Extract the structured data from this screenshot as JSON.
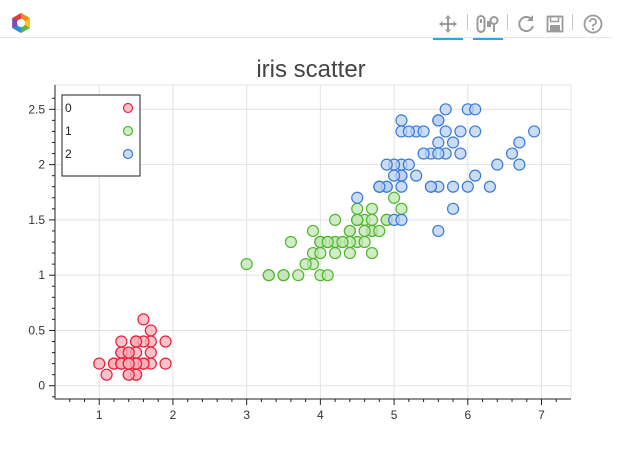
{
  "toolbar": {
    "logo_icon": "bokeh-logo-icon",
    "tools": [
      {
        "name": "pan-tool",
        "icon": "move-arrows-icon",
        "active": true
      },
      {
        "name": "wheel-zoom-tool",
        "icon": "wheel-zoom-icon",
        "active": true
      },
      {
        "name": "reset-tool",
        "icon": "reset-icon",
        "active": false
      },
      {
        "name": "save-tool",
        "icon": "save-disk-icon",
        "active": false
      },
      {
        "name": "help-tool",
        "icon": "help-question-icon",
        "active": false
      }
    ]
  },
  "chart_data": {
    "type": "scatter",
    "title": "iris scatter",
    "xlabel": "",
    "ylabel": "",
    "xlim": [
      0.4,
      7.4
    ],
    "ylim": [
      -0.12,
      2.72
    ],
    "x_ticks": [
      1,
      2,
      3,
      4,
      5,
      6,
      7
    ],
    "y_ticks": [
      0,
      0.5,
      1,
      1.5,
      2,
      2.5
    ],
    "x_tick_labels": [
      "1",
      "2",
      "3",
      "4",
      "5",
      "6",
      "7"
    ],
    "y_tick_labels": [
      "0",
      "0.5",
      "1",
      "1.5",
      "2",
      "2.5"
    ],
    "grid": true,
    "legend_position": "top-left",
    "series": [
      {
        "name": "0",
        "color": "#e8203a",
        "fill": "#f6b0ba",
        "points": [
          [
            1.4,
            0.2
          ],
          [
            1.4,
            0.2
          ],
          [
            1.3,
            0.2
          ],
          [
            1.5,
            0.2
          ],
          [
            1.4,
            0.2
          ],
          [
            1.7,
            0.4
          ],
          [
            1.4,
            0.3
          ],
          [
            1.5,
            0.2
          ],
          [
            1.4,
            0.2
          ],
          [
            1.5,
            0.1
          ],
          [
            1.5,
            0.2
          ],
          [
            1.6,
            0.2
          ],
          [
            1.4,
            0.1
          ],
          [
            1.1,
            0.1
          ],
          [
            1.2,
            0.2
          ],
          [
            1.5,
            0.4
          ],
          [
            1.3,
            0.4
          ],
          [
            1.4,
            0.3
          ],
          [
            1.7,
            0.3
          ],
          [
            1.5,
            0.3
          ],
          [
            1.7,
            0.2
          ],
          [
            1.5,
            0.4
          ],
          [
            1.0,
            0.2
          ],
          [
            1.7,
            0.5
          ],
          [
            1.9,
            0.2
          ],
          [
            1.6,
            0.2
          ],
          [
            1.6,
            0.4
          ],
          [
            1.5,
            0.2
          ],
          [
            1.4,
            0.2
          ],
          [
            1.6,
            0.2
          ],
          [
            1.6,
            0.2
          ],
          [
            1.5,
            0.4
          ],
          [
            1.5,
            0.1
          ],
          [
            1.4,
            0.2
          ],
          [
            1.5,
            0.2
          ],
          [
            1.2,
            0.2
          ],
          [
            1.3,
            0.2
          ],
          [
            1.4,
            0.1
          ],
          [
            1.3,
            0.2
          ],
          [
            1.5,
            0.2
          ],
          [
            1.3,
            0.3
          ],
          [
            1.3,
            0.3
          ],
          [
            1.3,
            0.2
          ],
          [
            1.6,
            0.6
          ],
          [
            1.9,
            0.4
          ],
          [
            1.4,
            0.3
          ],
          [
            1.6,
            0.2
          ],
          [
            1.4,
            0.2
          ],
          [
            1.5,
            0.2
          ],
          [
            1.4,
            0.2
          ]
        ]
      },
      {
        "name": "1",
        "color": "#4fb62e",
        "fill": "#c3e6b6",
        "points": [
          [
            4.7,
            1.4
          ],
          [
            4.5,
            1.5
          ],
          [
            4.9,
            1.5
          ],
          [
            4.0,
            1.3
          ],
          [
            4.6,
            1.5
          ],
          [
            4.5,
            1.3
          ],
          [
            4.7,
            1.6
          ],
          [
            3.3,
            1.0
          ],
          [
            4.6,
            1.3
          ],
          [
            3.9,
            1.4
          ],
          [
            3.5,
            1.0
          ],
          [
            4.2,
            1.5
          ],
          [
            4.0,
            1.0
          ],
          [
            4.7,
            1.4
          ],
          [
            3.6,
            1.3
          ],
          [
            4.4,
            1.4
          ],
          [
            4.5,
            1.5
          ],
          [
            4.1,
            1.0
          ],
          [
            4.5,
            1.5
          ],
          [
            3.9,
            1.1
          ],
          [
            4.8,
            1.8
          ],
          [
            4.0,
            1.3
          ],
          [
            4.9,
            1.5
          ],
          [
            4.7,
            1.2
          ],
          [
            4.3,
            1.3
          ],
          [
            4.4,
            1.4
          ],
          [
            4.8,
            1.4
          ],
          [
            5.0,
            1.7
          ],
          [
            4.5,
            1.5
          ],
          [
            3.5,
            1.0
          ],
          [
            3.8,
            1.1
          ],
          [
            3.7,
            1.0
          ],
          [
            3.9,
            1.2
          ],
          [
            5.1,
            1.6
          ],
          [
            4.5,
            1.5
          ],
          [
            4.5,
            1.6
          ],
          [
            4.7,
            1.5
          ],
          [
            4.4,
            1.3
          ],
          [
            4.1,
            1.3
          ],
          [
            4.0,
            1.3
          ],
          [
            4.4,
            1.2
          ],
          [
            4.6,
            1.4
          ],
          [
            4.0,
            1.2
          ],
          [
            3.3,
            1.0
          ],
          [
            4.2,
            1.3
          ],
          [
            4.2,
            1.2
          ],
          [
            4.2,
            1.3
          ],
          [
            4.3,
            1.3
          ],
          [
            3.0,
            1.1
          ],
          [
            4.1,
            1.3
          ]
        ]
      },
      {
        "name": "2",
        "color": "#3a7bd5",
        "fill": "#b9d0f2",
        "points": [
          [
            6.0,
            2.5
          ],
          [
            5.1,
            1.9
          ],
          [
            5.9,
            2.1
          ],
          [
            5.6,
            1.8
          ],
          [
            5.8,
            2.2
          ],
          [
            6.6,
            2.1
          ],
          [
            4.5,
            1.7
          ],
          [
            6.3,
            1.8
          ],
          [
            5.8,
            1.8
          ],
          [
            6.1,
            2.5
          ],
          [
            5.1,
            2.0
          ],
          [
            5.3,
            1.9
          ],
          [
            5.5,
            2.1
          ],
          [
            5.0,
            2.0
          ],
          [
            5.1,
            2.4
          ],
          [
            5.3,
            2.3
          ],
          [
            5.5,
            1.8
          ],
          [
            6.7,
            2.2
          ],
          [
            6.9,
            2.3
          ],
          [
            5.0,
            1.5
          ],
          [
            5.7,
            2.3
          ],
          [
            4.9,
            2.0
          ],
          [
            6.7,
            2.0
          ],
          [
            4.9,
            1.8
          ],
          [
            5.7,
            2.1
          ],
          [
            6.0,
            1.8
          ],
          [
            4.8,
            1.8
          ],
          [
            4.9,
            1.8
          ],
          [
            5.6,
            2.1
          ],
          [
            5.8,
            1.6
          ],
          [
            6.1,
            1.9
          ],
          [
            6.4,
            2.0
          ],
          [
            5.6,
            2.2
          ],
          [
            5.1,
            1.5
          ],
          [
            5.6,
            1.4
          ],
          [
            6.1,
            2.3
          ],
          [
            5.6,
            2.4
          ],
          [
            5.5,
            1.8
          ],
          [
            4.8,
            1.8
          ],
          [
            5.4,
            2.1
          ],
          [
            5.6,
            2.4
          ],
          [
            5.1,
            2.3
          ],
          [
            5.1,
            1.9
          ],
          [
            5.9,
            2.3
          ],
          [
            5.7,
            2.5
          ],
          [
            5.2,
            2.3
          ],
          [
            5.0,
            1.9
          ],
          [
            5.2,
            2.0
          ],
          [
            5.4,
            2.3
          ],
          [
            5.1,
            1.8
          ]
        ]
      }
    ]
  }
}
